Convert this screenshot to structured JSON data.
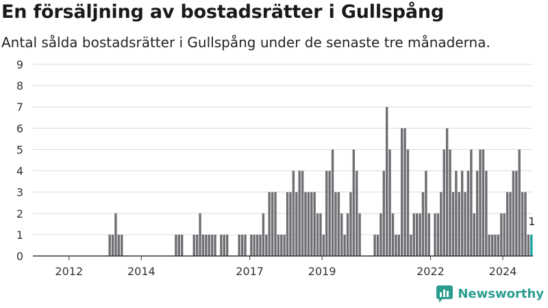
{
  "header": {
    "title": "En försäljning av bostadsrätter i Gullspång",
    "subtitle": "Antal sålda bostadsrätter i Gullspång under de senaste tre månaderna."
  },
  "brand": {
    "name": "Newsworthy",
    "icon": "newsworthy-logo-icon",
    "color": "#2a9d8f"
  },
  "colors": {
    "bar": "#6e6e73",
    "highlight": "#17a2a0",
    "grid": "#d9d9d9",
    "axis": "#333333"
  },
  "chart_data": {
    "type": "bar",
    "xlabel": "",
    "ylabel": "",
    "ylim": [
      0,
      9
    ],
    "yticks": [
      0,
      1,
      2,
      3,
      4,
      5,
      6,
      7,
      8,
      9
    ],
    "grid": true,
    "x_start": "2011-07",
    "x_end": "2025-05",
    "xticks": [
      "2012",
      "2014",
      "2017",
      "2019",
      "2022",
      "2024"
    ],
    "highlight_label": "1",
    "series": [
      {
        "values": [
          [
            "2013-08",
            1
          ],
          [
            "2013-09",
            1
          ],
          [
            "2013-10",
            2
          ],
          [
            "2013-11",
            1
          ],
          [
            "2013-12",
            1
          ],
          [
            "2015-06",
            1
          ],
          [
            "2015-07",
            1
          ],
          [
            "2015-08",
            1
          ],
          [
            "2015-12",
            1
          ],
          [
            "2016-01",
            1
          ],
          [
            "2016-02",
            2
          ],
          [
            "2016-03",
            1
          ],
          [
            "2016-04",
            1
          ],
          [
            "2016-05",
            1
          ],
          [
            "2016-06",
            1
          ],
          [
            "2016-07",
            1
          ],
          [
            "2016-09",
            1
          ],
          [
            "2016-10",
            1
          ],
          [
            "2016-11",
            1
          ],
          [
            "2017-03",
            1
          ],
          [
            "2017-04",
            1
          ],
          [
            "2017-05",
            1
          ],
          [
            "2017-07",
            1
          ],
          [
            "2017-08",
            1
          ],
          [
            "2017-09",
            1
          ],
          [
            "2017-10",
            1
          ],
          [
            "2017-11",
            2
          ],
          [
            "2017-12",
            1
          ],
          [
            "2018-01",
            3
          ],
          [
            "2018-02",
            3
          ],
          [
            "2018-03",
            3
          ],
          [
            "2018-04",
            1
          ],
          [
            "2018-05",
            1
          ],
          [
            "2018-06",
            1
          ],
          [
            "2018-07",
            3
          ],
          [
            "2018-08",
            3
          ],
          [
            "2018-09",
            4
          ],
          [
            "2018-10",
            3
          ],
          [
            "2018-11",
            4
          ],
          [
            "2018-12",
            4
          ],
          [
            "2019-01",
            3
          ],
          [
            "2019-02",
            3
          ],
          [
            "2019-03",
            3
          ],
          [
            "2019-04",
            3
          ],
          [
            "2019-05",
            2
          ],
          [
            "2019-06",
            2
          ],
          [
            "2019-07",
            1
          ],
          [
            "2019-08",
            4
          ],
          [
            "2019-09",
            4
          ],
          [
            "2019-10",
            5
          ],
          [
            "2019-11",
            3
          ],
          [
            "2019-12",
            3
          ],
          [
            "2020-01",
            2
          ],
          [
            "2020-02",
            1
          ],
          [
            "2020-03",
            2
          ],
          [
            "2020-04",
            3
          ],
          [
            "2020-05",
            5
          ],
          [
            "2020-06",
            4
          ],
          [
            "2020-07",
            2
          ],
          [
            "2020-12",
            1
          ],
          [
            "2021-01",
            1
          ],
          [
            "2021-02",
            2
          ],
          [
            "2021-03",
            4
          ],
          [
            "2021-04",
            7
          ],
          [
            "2021-05",
            5
          ],
          [
            "2021-06",
            2
          ],
          [
            "2021-07",
            1
          ],
          [
            "2021-08",
            1
          ],
          [
            "2021-09",
            6
          ],
          [
            "2021-10",
            6
          ],
          [
            "2021-11",
            5
          ],
          [
            "2021-12",
            1
          ],
          [
            "2022-01",
            2
          ],
          [
            "2022-02",
            2
          ],
          [
            "2022-03",
            2
          ],
          [
            "2022-04",
            3
          ],
          [
            "2022-05",
            4
          ],
          [
            "2022-06",
            2
          ],
          [
            "2022-08",
            2
          ],
          [
            "2022-09",
            2
          ],
          [
            "2022-10",
            3
          ],
          [
            "2022-11",
            5
          ],
          [
            "2022-12",
            6
          ],
          [
            "2023-01",
            5
          ],
          [
            "2023-02",
            3
          ],
          [
            "2023-03",
            4
          ],
          [
            "2023-04",
            3
          ],
          [
            "2023-05",
            4
          ],
          [
            "2023-06",
            3
          ],
          [
            "2023-07",
            4
          ],
          [
            "2023-08",
            5
          ],
          [
            "2023-09",
            2
          ],
          [
            "2023-10",
            4
          ],
          [
            "2023-11",
            5
          ],
          [
            "2023-12",
            5
          ],
          [
            "2024-01",
            4
          ],
          [
            "2024-02",
            1
          ],
          [
            "2024-03",
            1
          ],
          [
            "2024-04",
            1
          ],
          [
            "2024-05",
            1
          ],
          [
            "2024-06",
            2
          ],
          [
            "2024-07",
            2
          ],
          [
            "2024-08",
            3
          ],
          [
            "2024-09",
            3
          ],
          [
            "2024-10",
            4
          ],
          [
            "2024-11",
            4
          ],
          [
            "2024-12",
            5
          ],
          [
            "2025-01",
            3
          ],
          [
            "2025-02",
            3
          ],
          [
            "2025-03",
            1
          ],
          [
            "2025-04",
            1
          ]
        ]
      }
    ]
  }
}
